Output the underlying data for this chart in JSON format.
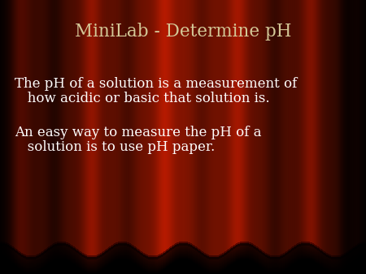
{
  "title": "MiniLab - Determine pH",
  "title_color": "#D4C898",
  "title_fontsize": 15.5,
  "body_text_1_line1": "The pH of a solution is a measurement of",
  "body_text_1_line2": "   how acidic or basic that solution is.",
  "body_text_2_line1": "An easy way to measure the pH of a",
  "body_text_2_line2": "   solution is to use pH paper.",
  "body_color": "#FFFFFF",
  "body_fontsize": 12,
  "figsize": [
    4.5,
    3.38
  ],
  "dpi": 100,
  "num_curtain_bands": 12,
  "curtain_colors": [
    "#6B0000",
    "#9B1500",
    "#7A0A00",
    "#B01800",
    "#820800",
    "#A01200",
    "#6B0000",
    "#9B1500",
    "#7A0A00",
    "#B01800",
    "#820800",
    "#A01200"
  ],
  "edge_dark_color": "#1A0000",
  "bottom_bg_color": "#180500",
  "scallop_color": "#3D0A00",
  "scallop_highlight": "#5A1000"
}
